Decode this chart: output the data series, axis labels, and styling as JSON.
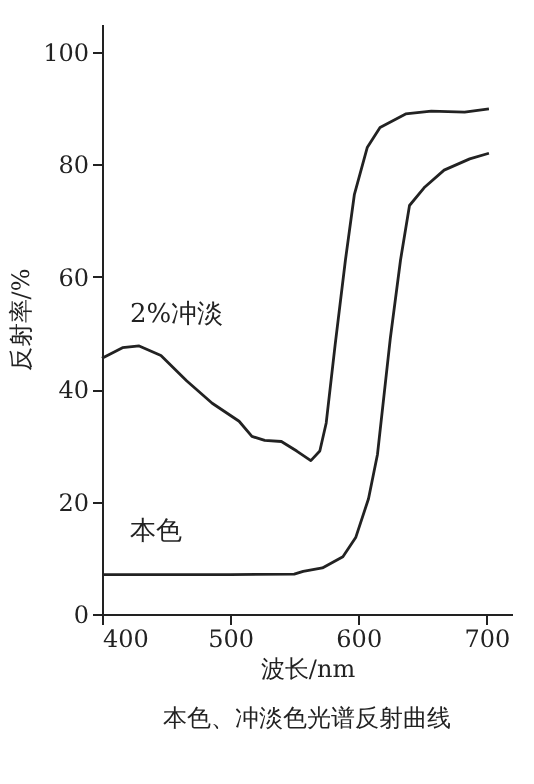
{
  "chart_data": {
    "type": "line",
    "xlabel": "波长/nm",
    "ylabel": "反射率/%",
    "annotations": [
      "本色、冲淡色光谱反射曲线"
    ],
    "xlim": [
      400,
      720
    ],
    "ylim": [
      0,
      105
    ],
    "xticks": [
      400,
      500,
      600,
      700
    ],
    "yticks": [
      0,
      20,
      40,
      60,
      80,
      100
    ],
    "grid": false,
    "legend": false,
    "marker": "none",
    "line_style": "solid",
    "series": [
      {
        "name": "2%冲淡",
        "color": "#222222",
        "x": [
          400,
          416,
          429,
          446,
          466,
          486,
          507,
          517,
          527,
          540,
          552,
          563,
          570,
          575,
          582,
          590,
          597,
          607,
          617,
          637,
          657,
          683,
          702
        ],
        "values": [
          45.5,
          47.4,
          47.7,
          46,
          41.5,
          37.5,
          34.3,
          31.6,
          30.9,
          30.7,
          29,
          27.3,
          29,
          34,
          48,
          63,
          74.7,
          83,
          86.6,
          89,
          89.5,
          89.3,
          89.9
        ]
      },
      {
        "name": "本色",
        "color": "#222222",
        "x": [
          400,
          450,
          500,
          550,
          557,
          572,
          588,
          598,
          608,
          615,
          625,
          633,
          640,
          652,
          667,
          687,
          702
        ],
        "values": [
          7,
          7,
          7,
          7.1,
          7.6,
          8.2,
          10.2,
          13.6,
          20.5,
          28.4,
          49,
          63,
          72.7,
          76,
          79,
          81,
          82
        ]
      }
    ]
  }
}
